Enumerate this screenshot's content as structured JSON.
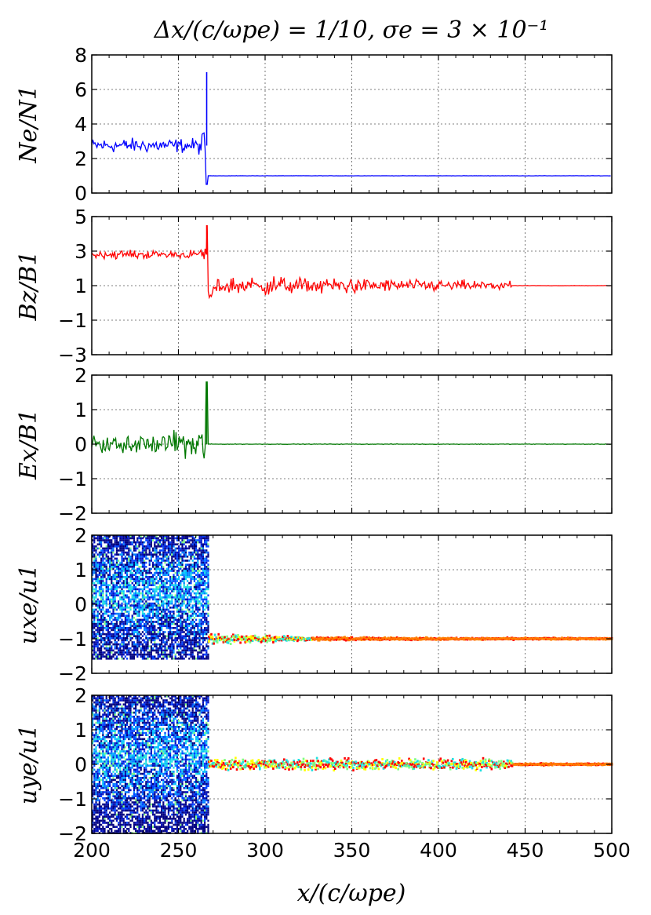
{
  "chart_data": {
    "title": "Δx/(c/ωpe) = 1/10, σe = 3 × 10⁻¹",
    "xlabel": "x/(c/ωpe)",
    "xlim": [
      200,
      500
    ],
    "xticks": [
      "200",
      "250",
      "300",
      "350",
      "400",
      "450",
      "500"
    ],
    "shock_position": 267,
    "panels": [
      {
        "type": "line",
        "ylabel": "Ne/N1",
        "color": "#0000ff",
        "ylim": [
          0,
          8
        ],
        "yticks": [
          "0",
          "2",
          "4",
          "6",
          "8"
        ],
        "upstream_level": 1.0,
        "downstream_mean": 2.75,
        "downstream_noise": 0.35,
        "peak": 7.0,
        "dip": 0.5,
        "x_end_of_turbulence": 267
      },
      {
        "type": "line",
        "ylabel": "Bz/B1",
        "color": "#ff0000",
        "ylim": [
          -3,
          5
        ],
        "yticks": [
          "−3",
          "−1",
          "1",
          "3",
          "5"
        ],
        "upstream_level": 1.0,
        "downstream_mean": 2.8,
        "downstream_noise": 0.2,
        "peak": 4.5,
        "precursor_end": 442,
        "precursor_amplitude": 0.9
      },
      {
        "type": "line",
        "ylabel": "Ex/B1",
        "color": "#007700",
        "ylim": [
          -2,
          2
        ],
        "yticks": [
          "−2",
          "−1",
          "0",
          "1",
          "2"
        ],
        "upstream_level": 0.0,
        "downstream_mean": 0.0,
        "downstream_noise": 0.25,
        "peak": 1.8,
        "dip": -0.7
      },
      {
        "type": "heatmap",
        "ylabel": "uxe/u1",
        "ylim": [
          -2,
          2
        ],
        "yticks": [
          "−2",
          "−1",
          "0",
          "1",
          "2"
        ],
        "beam_level": -1.0,
        "downstream_spread": [
          -1.6,
          2.0
        ]
      },
      {
        "type": "heatmap",
        "ylabel": "uye/u1",
        "ylim": [
          -2,
          2
        ],
        "yticks": [
          "−2",
          "−1",
          "0",
          "1",
          "2"
        ],
        "beam_level": 0.0,
        "downstream_spread": [
          -2.0,
          2.0
        ]
      }
    ]
  }
}
